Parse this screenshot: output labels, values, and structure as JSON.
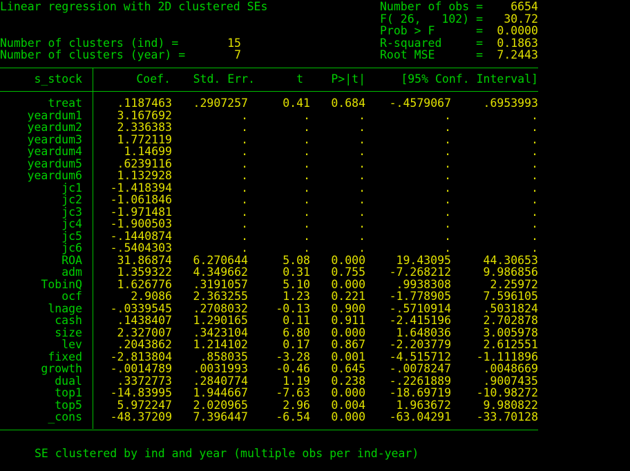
{
  "title": "Linear regression with 2D clustered SEs",
  "stats": [
    {
      "label": "Number of obs =",
      "value": "6654"
    },
    {
      "label": "F( 26,   102) =",
      "value": "30.72"
    },
    {
      "label": "Prob > F      =",
      "value": "0.0000"
    },
    {
      "label": "R-squared     =",
      "value": "0.1863"
    },
    {
      "label": "Root MSE      =",
      "value": "7.2443"
    }
  ],
  "clusters": [
    {
      "label": "Number of clusters (ind) =",
      "value": "15"
    },
    {
      "label": "Number of clusters (year) =",
      "value": "7"
    }
  ],
  "table": {
    "headers": [
      "s_stock",
      "Coef.",
      "Std. Err.",
      "t",
      "P>|t|",
      "[95% Conf. Interval]"
    ],
    "rows": [
      [
        "treat",
        ".1187463",
        ".2907257",
        "0.41",
        "0.684",
        "-.4579067",
        ".6953993"
      ],
      [
        "yeardum1",
        "3.167692",
        ".",
        ".",
        ".",
        ".",
        "."
      ],
      [
        "yeardum2",
        "2.336383",
        ".",
        ".",
        ".",
        ".",
        "."
      ],
      [
        "yeardum3",
        "1.772119",
        ".",
        ".",
        ".",
        ".",
        "."
      ],
      [
        "yeardum4",
        "1.14699",
        ".",
        ".",
        ".",
        ".",
        "."
      ],
      [
        "yeardum5",
        ".6239116",
        ".",
        ".",
        ".",
        ".",
        "."
      ],
      [
        "yeardum6",
        "1.132928",
        ".",
        ".",
        ".",
        ".",
        "."
      ],
      [
        "jc1",
        "-1.418394",
        ".",
        ".",
        ".",
        ".",
        "."
      ],
      [
        "jc2",
        "-1.061846",
        ".",
        ".",
        ".",
        ".",
        "."
      ],
      [
        "jc3",
        "-1.971481",
        ".",
        ".",
        ".",
        ".",
        "."
      ],
      [
        "jc4",
        "-1.900503",
        ".",
        ".",
        ".",
        ".",
        "."
      ],
      [
        "jc5",
        "-.1440874",
        ".",
        ".",
        ".",
        ".",
        "."
      ],
      [
        "jc6",
        "-.5404303",
        ".",
        ".",
        ".",
        ".",
        "."
      ],
      [
        "ROA",
        "31.86874",
        "6.270644",
        "5.08",
        "0.000",
        "19.43095",
        "44.30653"
      ],
      [
        "adm",
        "1.359322",
        "4.349662",
        "0.31",
        "0.755",
        "-7.268212",
        "9.986856"
      ],
      [
        "TobinQ",
        "1.626776",
        ".3191057",
        "5.10",
        "0.000",
        ".9938308",
        "2.25972"
      ],
      [
        "ocf",
        "2.9086",
        "2.363255",
        "1.23",
        "0.221",
        "-1.778905",
        "7.596105"
      ],
      [
        "lnage",
        "-.0339545",
        ".2708032",
        "-0.13",
        "0.900",
        "-.5710914",
        ".5031824"
      ],
      [
        "cash",
        ".1438407",
        "1.290165",
        "0.11",
        "0.911",
        "-2.415196",
        "2.702878"
      ],
      [
        "size",
        "2.327007",
        ".3423104",
        "6.80",
        "0.000",
        "1.648036",
        "3.005978"
      ],
      [
        "lev",
        ".2043862",
        "1.214102",
        "0.17",
        "0.867",
        "-2.203779",
        "2.612551"
      ],
      [
        "fixed",
        "-2.813804",
        ".858035",
        "-3.28",
        "0.001",
        "-4.515712",
        "-1.111896"
      ],
      [
        "growth",
        "-.0014789",
        ".0031993",
        "-0.46",
        "0.645",
        "-.0078247",
        ".0048669"
      ],
      [
        "dual",
        ".3372773",
        ".2840774",
        "1.19",
        "0.238",
        "-.2261889",
        ".9007435"
      ],
      [
        "top1",
        "-14.83995",
        "1.944667",
        "-7.63",
        "0.000",
        "-18.69719",
        "-10.98272"
      ],
      [
        "top5",
        "5.972247",
        "2.020965",
        "2.96",
        "0.004",
        "1.963672",
        "9.980822"
      ],
      [
        "_cons",
        "-48.37209",
        "7.396447",
        "-6.54",
        "0.000",
        "-63.04291",
        "-33.70128"
      ]
    ]
  },
  "footer": "SE clustered by ind and year (multiple obs per ind-year)",
  "colors": {
    "background": "#000000",
    "label": "#00d000",
    "value": "#e0e000"
  }
}
